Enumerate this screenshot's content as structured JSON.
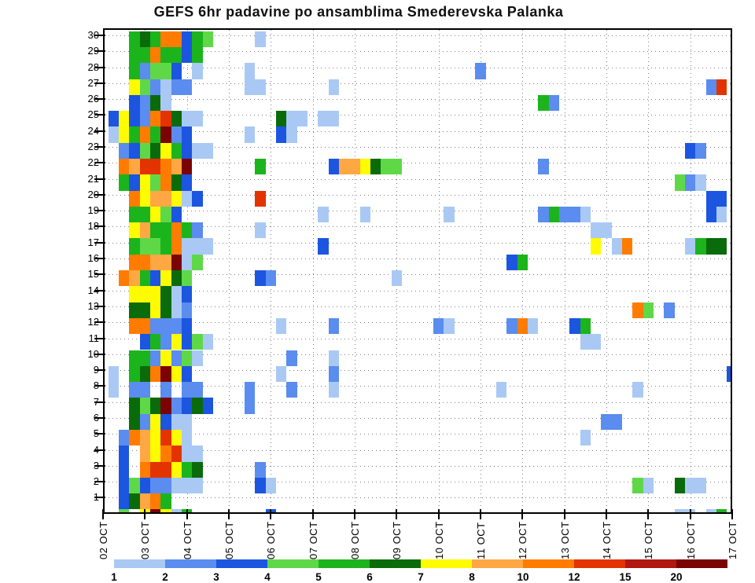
{
  "title": "GEFS 6hr padavine po ansamblima Smederevska Palanka",
  "chart_data": {
    "type": "heatmap",
    "title": "GEFS 6hr padavine po ansamblima Smederevska Palanka",
    "xlabel": "",
    "ylabel": "",
    "x_axis": {
      "tick_labels": [
        "02 OCT",
        "03 OCT",
        "04 OCT",
        "05 OCT",
        "06 OCT",
        "07 OCT",
        "08 OCT",
        "09 OCT",
        "10 OCT",
        "11 OCT",
        "12 OCT",
        "13 OCT",
        "14 OCT",
        "15 OCT",
        "16 OCT",
        "17 OCT"
      ],
      "steps_per_day": 4,
      "step_hours": 6
    },
    "y_axis": {
      "tick_labels": [
        "30",
        "29",
        "28",
        "27",
        "26",
        "25",
        "24",
        "23",
        "22",
        "21",
        "20",
        "19",
        "18",
        "17",
        "16",
        "15",
        "14",
        "13",
        "12",
        "11",
        "10",
        "9",
        "8",
        "7",
        "6",
        "5",
        "4",
        "3",
        "2",
        "1"
      ]
    },
    "legend": {
      "position": "bottom",
      "boundary_values": [
        "1",
        "2",
        "3",
        "4",
        "5",
        "6",
        "7",
        "8",
        "10",
        "12",
        "15",
        "20"
      ],
      "colors": [
        "#A9C9F4",
        "#5B8CEF",
        "#1C55E0",
        "#5FD848",
        "#1CB41C",
        "#0A6B0A",
        "#FFFB00",
        "#FFA843",
        "#FF7C00",
        "#E33300",
        "#B01710",
        "#7A0403"
      ]
    },
    "grid": "dotted, vertical line each day, horizontal line each ensemble member",
    "cells_format": "[member_row, time_col (6h steps from 02 OCT 06h), color_level 1-12]",
    "cells": [
      [
        30,
        2,
        5
      ],
      [
        30,
        3,
        6
      ],
      [
        30,
        4,
        5
      ],
      [
        30,
        5,
        9
      ],
      [
        30,
        6,
        9
      ],
      [
        30,
        7,
        3
      ],
      [
        30,
        8,
        5
      ],
      [
        30,
        9,
        4
      ],
      [
        30,
        14,
        1
      ],
      [
        29,
        2,
        5
      ],
      [
        29,
        3,
        5
      ],
      [
        29,
        4,
        9
      ],
      [
        29,
        5,
        5
      ],
      [
        29,
        6,
        5
      ],
      [
        29,
        7,
        3
      ],
      [
        29,
        8,
        5
      ],
      [
        28,
        2,
        5
      ],
      [
        28,
        3,
        2
      ],
      [
        28,
        4,
        4
      ],
      [
        28,
        5,
        4
      ],
      [
        28,
        6,
        3
      ],
      [
        28,
        8,
        1
      ],
      [
        28,
        13,
        1
      ],
      [
        28,
        35,
        2
      ],
      [
        27,
        2,
        7
      ],
      [
        27,
        3,
        4
      ],
      [
        27,
        4,
        2
      ],
      [
        27,
        5,
        1
      ],
      [
        27,
        6,
        2
      ],
      [
        27,
        7,
        2
      ],
      [
        27,
        13,
        1
      ],
      [
        27,
        14,
        1
      ],
      [
        27,
        21,
        1
      ],
      [
        27,
        57,
        2
      ],
      [
        27,
        58,
        10
      ],
      [
        26,
        2,
        3
      ],
      [
        26,
        3,
        2
      ],
      [
        26,
        4,
        6
      ],
      [
        26,
        5,
        1
      ],
      [
        26,
        41,
        5
      ],
      [
        26,
        42,
        2
      ],
      [
        25,
        0,
        3
      ],
      [
        25,
        1,
        7
      ],
      [
        25,
        2,
        3
      ],
      [
        25,
        3,
        2
      ],
      [
        25,
        4,
        9
      ],
      [
        25,
        5,
        10
      ],
      [
        25,
        6,
        6
      ],
      [
        25,
        7,
        1
      ],
      [
        25,
        8,
        1
      ],
      [
        25,
        16,
        6
      ],
      [
        25,
        17,
        1
      ],
      [
        25,
        18,
        1
      ],
      [
        25,
        20,
        1
      ],
      [
        25,
        21,
        1
      ],
      [
        24,
        0,
        1
      ],
      [
        24,
        1,
        7
      ],
      [
        24,
        2,
        5
      ],
      [
        24,
        3,
        9
      ],
      [
        24,
        4,
        5
      ],
      [
        24,
        5,
        12
      ],
      [
        24,
        6,
        2
      ],
      [
        24,
        7,
        3
      ],
      [
        24,
        13,
        1
      ],
      [
        24,
        16,
        3
      ],
      [
        24,
        17,
        1
      ],
      [
        23,
        1,
        2
      ],
      [
        23,
        2,
        3
      ],
      [
        23,
        3,
        4
      ],
      [
        23,
        4,
        6
      ],
      [
        23,
        5,
        7
      ],
      [
        23,
        6,
        5
      ],
      [
        23,
        7,
        3
      ],
      [
        23,
        8,
        1
      ],
      [
        23,
        9,
        1
      ],
      [
        23,
        55,
        3
      ],
      [
        23,
        56,
        2
      ],
      [
        22,
        1,
        9
      ],
      [
        22,
        2,
        8
      ],
      [
        22,
        3,
        10
      ],
      [
        22,
        4,
        10
      ],
      [
        22,
        5,
        9
      ],
      [
        22,
        6,
        8
      ],
      [
        22,
        7,
        12
      ],
      [
        22,
        14,
        5
      ],
      [
        22,
        21,
        3
      ],
      [
        22,
        22,
        8
      ],
      [
        22,
        23,
        8
      ],
      [
        22,
        24,
        7
      ],
      [
        22,
        25,
        6
      ],
      [
        22,
        26,
        4
      ],
      [
        22,
        27,
        4
      ],
      [
        22,
        41,
        2
      ],
      [
        21,
        1,
        5
      ],
      [
        21,
        2,
        3
      ],
      [
        21,
        3,
        7
      ],
      [
        21,
        4,
        4
      ],
      [
        21,
        5,
        9
      ],
      [
        21,
        6,
        6
      ],
      [
        21,
        7,
        3
      ],
      [
        21,
        54,
        4
      ],
      [
        21,
        55,
        2
      ],
      [
        21,
        56,
        1
      ],
      [
        20,
        2,
        9
      ],
      [
        20,
        3,
        7
      ],
      [
        20,
        4,
        8
      ],
      [
        20,
        5,
        8
      ],
      [
        20,
        6,
        7
      ],
      [
        20,
        7,
        1
      ],
      [
        20,
        8,
        3
      ],
      [
        20,
        14,
        10
      ],
      [
        20,
        57,
        3
      ],
      [
        20,
        58,
        3
      ],
      [
        19,
        2,
        5
      ],
      [
        19,
        3,
        5
      ],
      [
        19,
        4,
        7
      ],
      [
        19,
        5,
        4
      ],
      [
        19,
        6,
        3
      ],
      [
        19,
        20,
        1
      ],
      [
        19,
        24,
        1
      ],
      [
        19,
        32,
        1
      ],
      [
        19,
        41,
        2
      ],
      [
        19,
        42,
        5
      ],
      [
        19,
        43,
        2
      ],
      [
        19,
        44,
        2
      ],
      [
        19,
        45,
        1
      ],
      [
        19,
        57,
        3
      ],
      [
        19,
        58,
        1
      ],
      [
        18,
        2,
        7
      ],
      [
        18,
        3,
        8
      ],
      [
        18,
        4,
        5
      ],
      [
        18,
        5,
        5
      ],
      [
        18,
        6,
        9
      ],
      [
        18,
        7,
        5
      ],
      [
        18,
        8,
        2
      ],
      [
        18,
        14,
        1
      ],
      [
        18,
        46,
        1
      ],
      [
        18,
        47,
        1
      ],
      [
        17,
        2,
        5
      ],
      [
        17,
        3,
        4
      ],
      [
        17,
        4,
        4
      ],
      [
        17,
        5,
        5
      ],
      [
        17,
        6,
        9
      ],
      [
        17,
        7,
        1
      ],
      [
        17,
        8,
        1
      ],
      [
        17,
        9,
        1
      ],
      [
        17,
        20,
        3
      ],
      [
        17,
        46,
        7
      ],
      [
        17,
        48,
        1
      ],
      [
        17,
        49,
        9
      ],
      [
        17,
        55,
        1
      ],
      [
        17,
        56,
        5
      ],
      [
        17,
        57,
        6
      ],
      [
        17,
        58,
        6
      ],
      [
        16,
        2,
        9
      ],
      [
        16,
        3,
        9
      ],
      [
        16,
        4,
        8
      ],
      [
        16,
        5,
        8
      ],
      [
        16,
        6,
        12
      ],
      [
        16,
        7,
        1
      ],
      [
        16,
        8,
        4
      ],
      [
        16,
        38,
        3
      ],
      [
        16,
        39,
        5
      ],
      [
        15,
        1,
        9
      ],
      [
        15,
        2,
        8
      ],
      [
        15,
        3,
        5
      ],
      [
        15,
        4,
        3
      ],
      [
        15,
        5,
        7
      ],
      [
        15,
        6,
        6
      ],
      [
        15,
        7,
        4
      ],
      [
        15,
        14,
        3
      ],
      [
        15,
        15,
        2
      ],
      [
        15,
        27,
        1
      ],
      [
        14,
        2,
        7
      ],
      [
        14,
        3,
        7
      ],
      [
        14,
        4,
        7
      ],
      [
        14,
        5,
        6
      ],
      [
        14,
        6,
        1
      ],
      [
        14,
        7,
        3
      ],
      [
        13,
        2,
        6
      ],
      [
        13,
        3,
        6
      ],
      [
        13,
        4,
        7
      ],
      [
        13,
        5,
        6
      ],
      [
        13,
        6,
        1
      ],
      [
        13,
        7,
        2
      ],
      [
        13,
        50,
        9
      ],
      [
        13,
        51,
        4
      ],
      [
        13,
        53,
        2
      ],
      [
        12,
        2,
        9
      ],
      [
        12,
        3,
        9
      ],
      [
        12,
        4,
        2
      ],
      [
        12,
        5,
        2
      ],
      [
        12,
        6,
        2
      ],
      [
        12,
        7,
        3
      ],
      [
        12,
        16,
        1
      ],
      [
        12,
        21,
        2
      ],
      [
        12,
        31,
        2
      ],
      [
        12,
        32,
        1
      ],
      [
        12,
        38,
        2
      ],
      [
        12,
        39,
        9
      ],
      [
        12,
        40,
        1
      ],
      [
        12,
        44,
        3
      ],
      [
        12,
        45,
        5
      ],
      [
        11,
        3,
        3
      ],
      [
        11,
        4,
        5
      ],
      [
        11,
        5,
        2
      ],
      [
        11,
        6,
        7
      ],
      [
        11,
        7,
        3
      ],
      [
        11,
        8,
        4
      ],
      [
        11,
        9,
        1
      ],
      [
        11,
        45,
        1
      ],
      [
        11,
        46,
        1
      ],
      [
        10,
        2,
        5
      ],
      [
        10,
        3,
        5
      ],
      [
        10,
        4,
        2
      ],
      [
        10,
        5,
        7
      ],
      [
        10,
        6,
        2
      ],
      [
        10,
        7,
        4
      ],
      [
        10,
        8,
        1
      ],
      [
        10,
        17,
        2
      ],
      [
        10,
        21,
        1
      ],
      [
        9,
        0,
        1
      ],
      [
        9,
        2,
        5
      ],
      [
        9,
        3,
        6
      ],
      [
        9,
        4,
        9
      ],
      [
        9,
        5,
        12
      ],
      [
        9,
        6,
        7
      ],
      [
        9,
        7,
        3
      ],
      [
        9,
        16,
        1
      ],
      [
        9,
        21,
        2
      ],
      [
        9,
        59,
        3
      ],
      [
        8,
        0,
        1
      ],
      [
        8,
        2,
        2
      ],
      [
        8,
        3,
        2
      ],
      [
        8,
        5,
        2
      ],
      [
        8,
        7,
        2
      ],
      [
        8,
        8,
        2
      ],
      [
        8,
        13,
        2
      ],
      [
        8,
        17,
        2
      ],
      [
        8,
        21,
        1
      ],
      [
        8,
        37,
        1
      ],
      [
        8,
        50,
        1
      ],
      [
        7,
        2,
        6
      ],
      [
        7,
        3,
        4
      ],
      [
        7,
        4,
        6
      ],
      [
        7,
        5,
        12
      ],
      [
        7,
        6,
        2
      ],
      [
        7,
        7,
        3
      ],
      [
        7,
        8,
        6
      ],
      [
        7,
        9,
        3
      ],
      [
        7,
        13,
        2
      ],
      [
        6,
        2,
        6
      ],
      [
        6,
        3,
        2
      ],
      [
        6,
        4,
        7
      ],
      [
        6,
        5,
        3
      ],
      [
        6,
        6,
        1
      ],
      [
        6,
        7,
        1
      ],
      [
        6,
        47,
        2
      ],
      [
        6,
        48,
        2
      ],
      [
        5,
        1,
        2
      ],
      [
        5,
        2,
        9
      ],
      [
        5,
        3,
        8
      ],
      [
        5,
        4,
        7
      ],
      [
        5,
        5,
        10
      ],
      [
        5,
        6,
        7
      ],
      [
        5,
        7,
        1
      ],
      [
        5,
        45,
        1
      ],
      [
        4,
        1,
        3
      ],
      [
        4,
        3,
        8
      ],
      [
        4,
        4,
        7
      ],
      [
        4,
        5,
        9
      ],
      [
        4,
        6,
        10
      ],
      [
        4,
        7,
        1
      ],
      [
        4,
        8,
        1
      ],
      [
        3,
        1,
        3
      ],
      [
        3,
        3,
        9
      ],
      [
        3,
        4,
        10
      ],
      [
        3,
        5,
        10
      ],
      [
        3,
        6,
        7
      ],
      [
        3,
        7,
        5
      ],
      [
        3,
        8,
        6
      ],
      [
        3,
        14,
        2
      ],
      [
        2,
        1,
        3
      ],
      [
        2,
        2,
        4
      ],
      [
        2,
        3,
        3
      ],
      [
        2,
        4,
        2
      ],
      [
        2,
        5,
        2
      ],
      [
        2,
        6,
        1
      ],
      [
        2,
        7,
        1
      ],
      [
        2,
        8,
        1
      ],
      [
        2,
        14,
        3
      ],
      [
        2,
        15,
        1
      ],
      [
        2,
        50,
        4
      ],
      [
        2,
        51,
        1
      ],
      [
        2,
        54,
        6
      ],
      [
        2,
        55,
        1
      ],
      [
        2,
        56,
        1
      ],
      [
        1,
        1,
        3
      ],
      [
        1,
        2,
        6
      ],
      [
        1,
        3,
        8
      ],
      [
        1,
        4,
        9
      ],
      [
        1,
        5,
        5
      ],
      [
        0,
        1,
        4
      ],
      [
        0,
        3,
        7
      ],
      [
        0,
        4,
        12
      ],
      [
        0,
        5,
        7
      ],
      [
        0,
        6,
        1
      ],
      [
        0,
        7,
        5
      ],
      [
        0,
        15,
        3
      ],
      [
        0,
        54,
        1
      ],
      [
        0,
        55,
        1
      ],
      [
        0,
        57,
        1
      ],
      [
        0,
        58,
        5
      ]
    ]
  }
}
